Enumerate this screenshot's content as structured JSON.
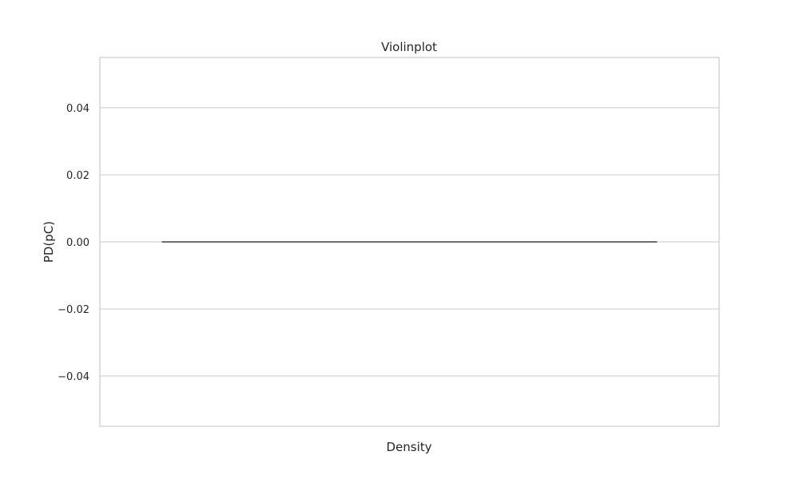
{
  "chart_data": {
    "type": "violin",
    "title": "Violinplot",
    "xlabel": "Density",
    "ylabel": "PD(pC)",
    "ylim": [
      -0.055,
      0.055
    ],
    "yticks": [
      0.04,
      0.02,
      0.0,
      -0.02,
      -0.04
    ],
    "ytick_labels": [
      "0.04",
      "0.02",
      "0.00",
      "−0.02",
      "−0.04"
    ],
    "grid": true,
    "series": [
      {
        "values": [
          0.0
        ]
      }
    ],
    "colors": {
      "grid": "#cccccc",
      "frame": "#cccccc",
      "line": "#3f3f3f",
      "text": "#262626"
    }
  }
}
